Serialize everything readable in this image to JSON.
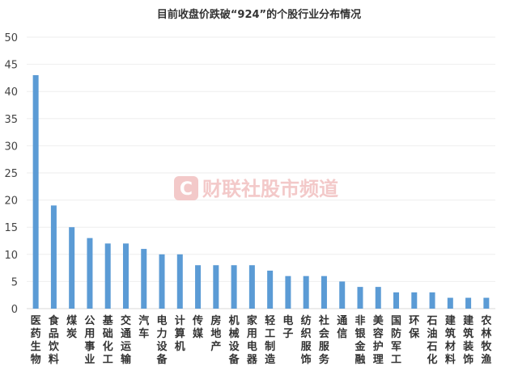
{
  "chart_data": {
    "type": "bar",
    "title": "目前收盘价跌破“924”的个股行业分布情况",
    "xlabel": "",
    "ylabel": "",
    "ylim": [
      0,
      50
    ],
    "yticks": [
      0,
      5,
      10,
      15,
      20,
      25,
      30,
      35,
      40,
      45,
      50
    ],
    "grid": true,
    "legend": "none",
    "bar_color": "#5b9bd5",
    "categories": [
      "医药生物",
      "食品饮料",
      "煤炭",
      "公用事业",
      "基础化工",
      "交通运输",
      "汽车",
      "电力设备",
      "计算机",
      "传媒",
      "房地产",
      "机械设备",
      "家用电器",
      "轻工制造",
      "电子",
      "纺织服饰",
      "社会服务",
      "通信",
      "非银金融",
      "美容护理",
      "国防军工",
      "环保",
      "石油石化",
      "建筑材料",
      "建筑装饰",
      "农林牧渔"
    ],
    "values": [
      43,
      19,
      15,
      13,
      12,
      12,
      11,
      10,
      10,
      8,
      8,
      8,
      8,
      7,
      6,
      6,
      6,
      5,
      4,
      4,
      3,
      3,
      3,
      2,
      2,
      2
    ]
  },
  "watermark": {
    "text": "财联社股市频道",
    "logo_letter": "C",
    "logo_color": "#e8a0a0"
  }
}
